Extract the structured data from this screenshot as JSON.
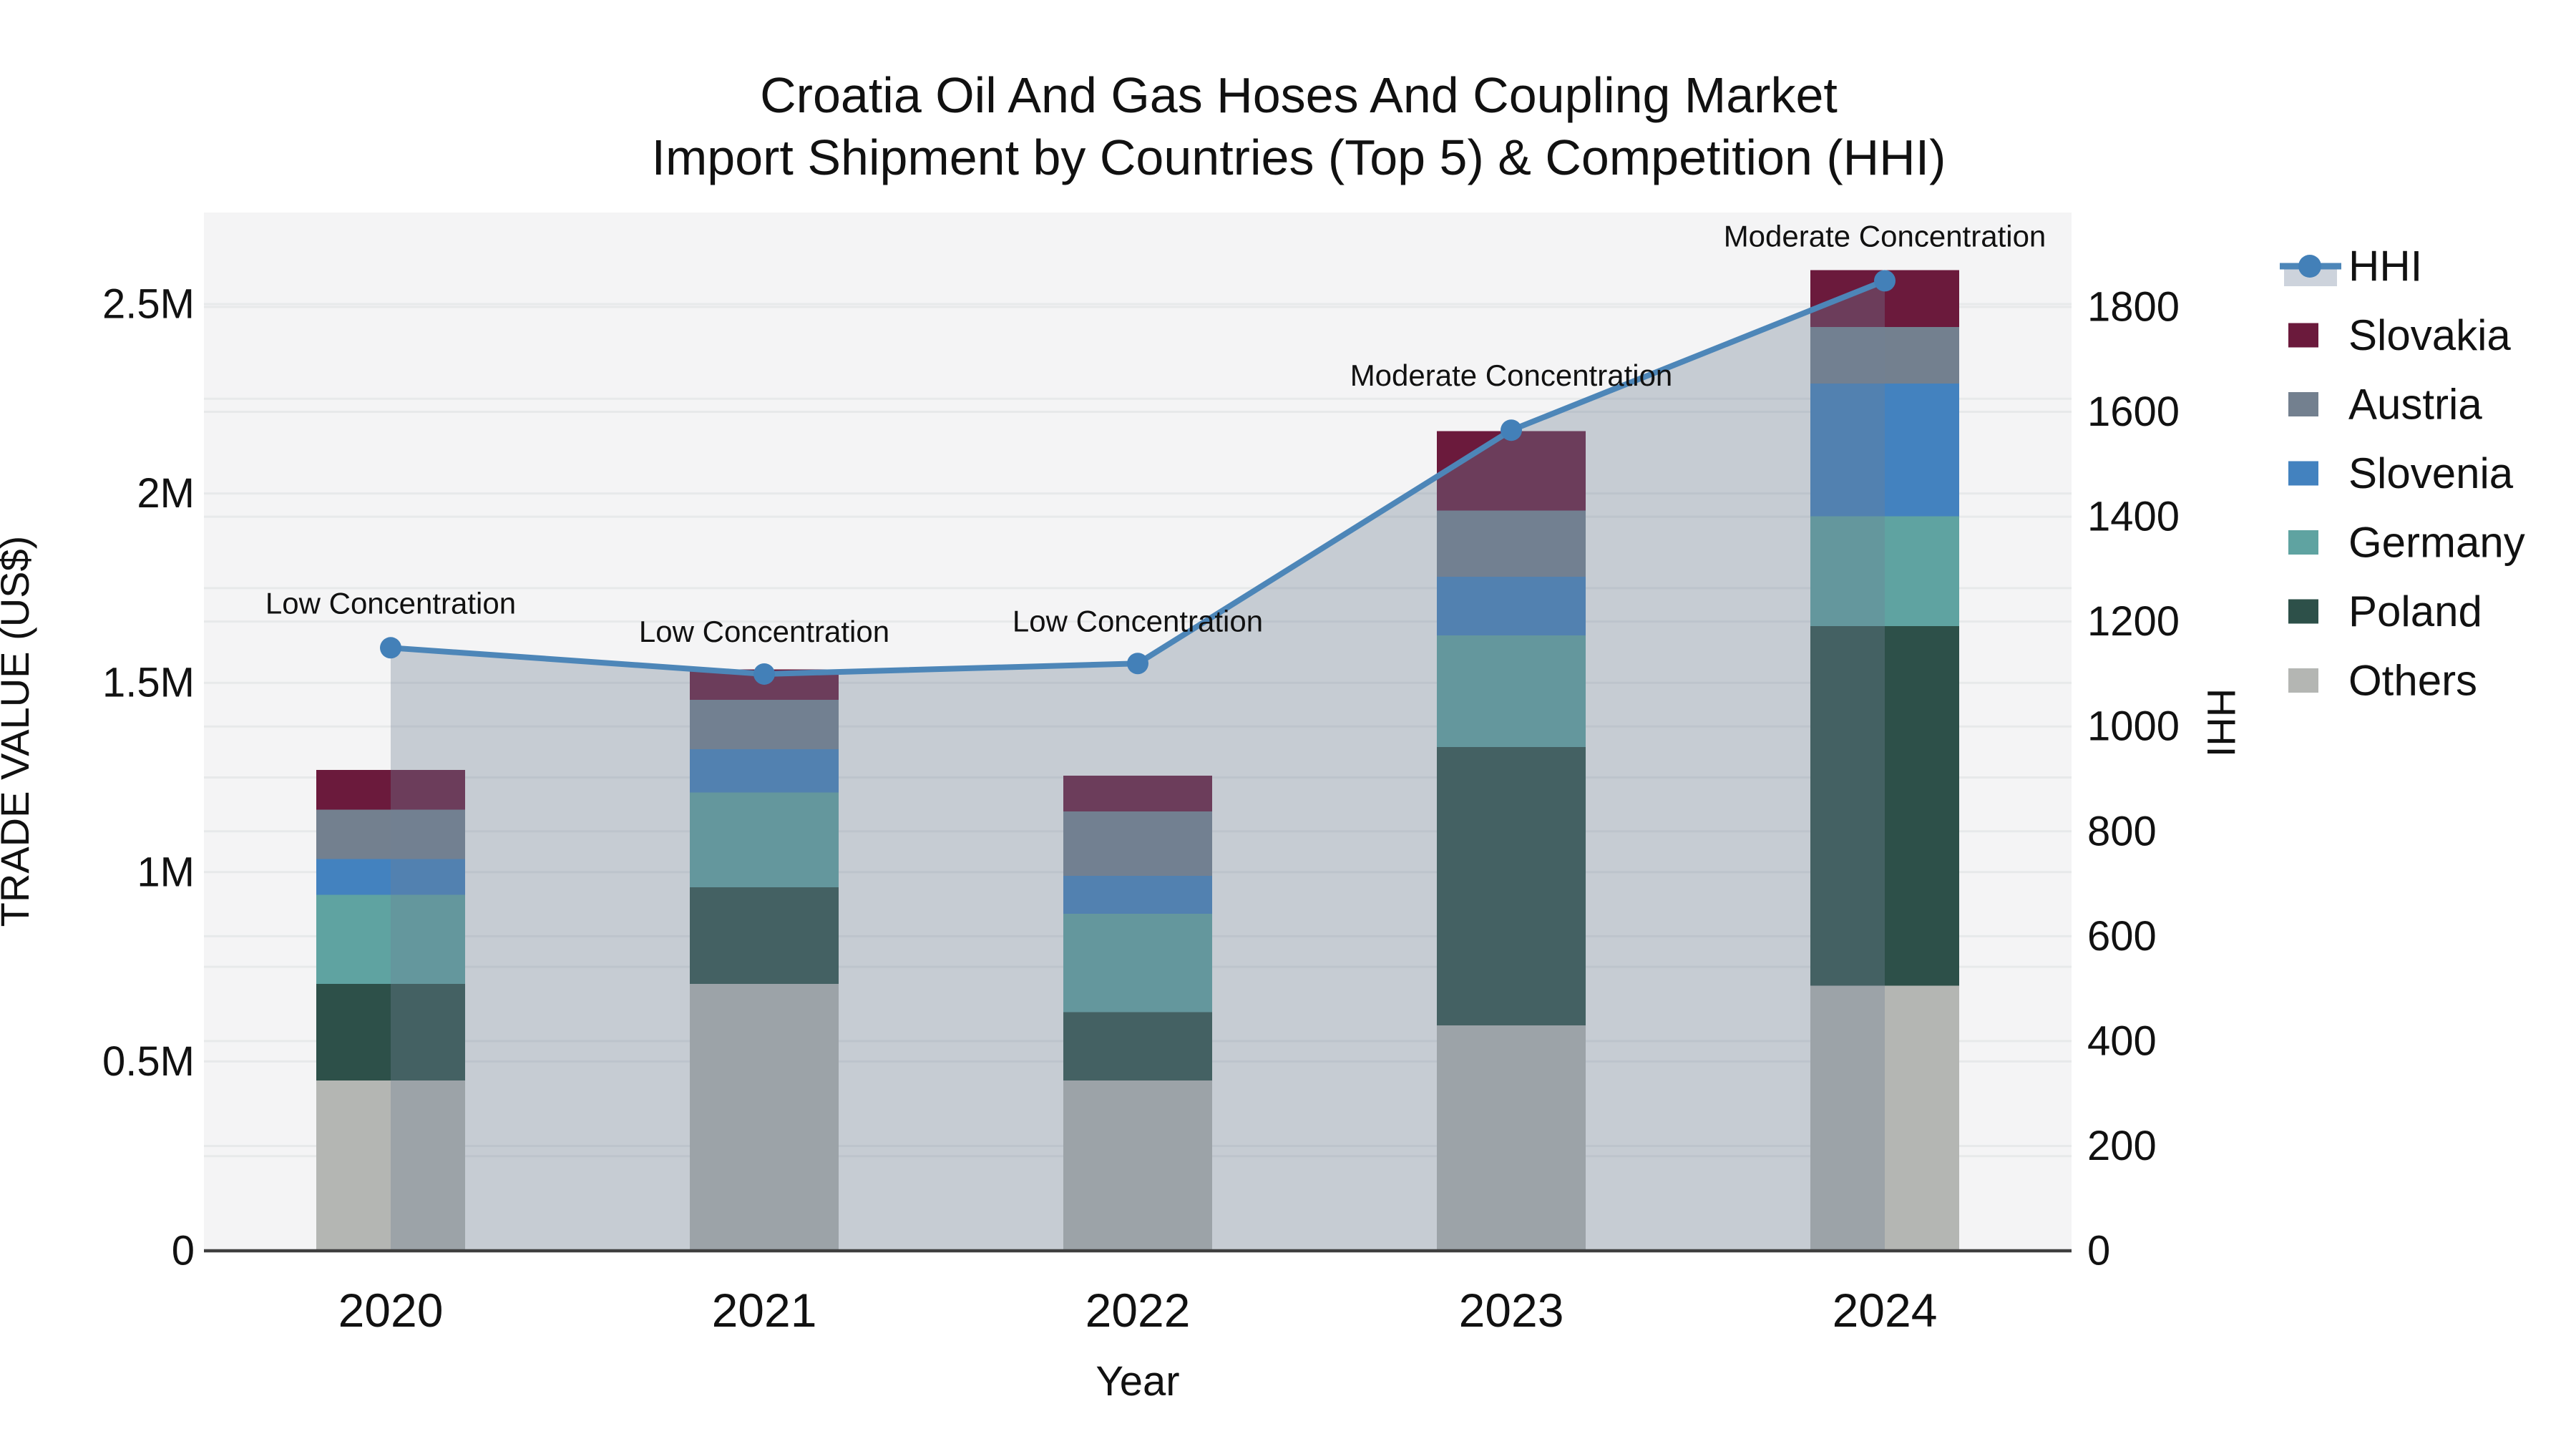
{
  "chart_data": {
    "type": "bar",
    "title_line1": "Croatia Oil And Gas Hoses And Coupling Market",
    "title_line2": "Import Shipment by Countries (Top 5) & Competition (HHI)",
    "xlabel": "Year",
    "ylabel_left": "TRADE VALUE (US$)",
    "ylabel_right": "HHI",
    "categories": [
      "2020",
      "2021",
      "2022",
      "2023",
      "2024"
    ],
    "stack_series": [
      {
        "name": "Others",
        "color": "#b4b6b3",
        "values": [
          450000,
          705000,
          450000,
          595000,
          700000
        ]
      },
      {
        "name": "Poland",
        "color": "#2d5049",
        "values": [
          255000,
          255000,
          180000,
          735000,
          950000
        ]
      },
      {
        "name": "Germany",
        "color": "#5fa3a1",
        "values": [
          235000,
          250000,
          260000,
          295000,
          290000
        ]
      },
      {
        "name": "Slovenia",
        "color": "#4382bf",
        "values": [
          95000,
          115000,
          100000,
          155000,
          350000
        ]
      },
      {
        "name": "Austria",
        "color": "#73808f",
        "values": [
          130000,
          130000,
          170000,
          175000,
          150000
        ]
      },
      {
        "name": "Slovakia",
        "color": "#6b1a3c",
        "values": [
          105000,
          80000,
          95000,
          210000,
          150000
        ]
      }
    ],
    "line_series": {
      "name": "HHI",
      "color": "#4d86b8",
      "values": [
        1150,
        1100,
        1120,
        1565,
        1850
      ]
    },
    "annotations": [
      {
        "category": "2020",
        "text": "Low Concentration"
      },
      {
        "category": "2021",
        "text": "Low Concentration"
      },
      {
        "category": "2022",
        "text": "Low Concentration"
      },
      {
        "category": "2023",
        "text": "Moderate Concentration"
      },
      {
        "category": "2024",
        "text": "Moderate Concentration"
      }
    ],
    "legend": [
      {
        "label": "HHI",
        "type": "line"
      },
      {
        "label": "Slovakia",
        "type": "swatch"
      },
      {
        "label": "Austria",
        "type": "swatch"
      },
      {
        "label": "Slovenia",
        "type": "swatch"
      },
      {
        "label": "Germany",
        "type": "swatch"
      },
      {
        "label": "Poland",
        "type": "swatch"
      },
      {
        "label": "Others",
        "type": "swatch"
      }
    ],
    "axes": {
      "left_ticks": {
        "values": [
          0,
          500000,
          1000000,
          1500000,
          2000000,
          2500000
        ],
        "labels": [
          "0",
          "0.5M",
          "1M",
          "1.5M",
          "2M",
          "2.5M"
        ]
      },
      "right_ticks": {
        "values": [
          0,
          200,
          400,
          600,
          800,
          1000,
          1200,
          1400,
          1600,
          1800
        ],
        "labels": [
          "0",
          "200",
          "400",
          "600",
          "800",
          "1000",
          "1200",
          "1400",
          "1600",
          "1800"
        ]
      },
      "left_range": [
        0,
        2740000
      ],
      "right_range": [
        0,
        1980
      ],
      "grid": "on",
      "legend_position": "right"
    },
    "colors": {
      "hhi_line": "#4d86b8",
      "hhi_marker": "#4380b8",
      "area_overlay": "rgba(112,128,150,0.35)",
      "legend_area_swatch": "#cdd3dc",
      "plot_bg": "#f4f4f5",
      "grid": "#e7e9ea",
      "axis_line": "#3f3f3f",
      "text": "#111111"
    }
  }
}
